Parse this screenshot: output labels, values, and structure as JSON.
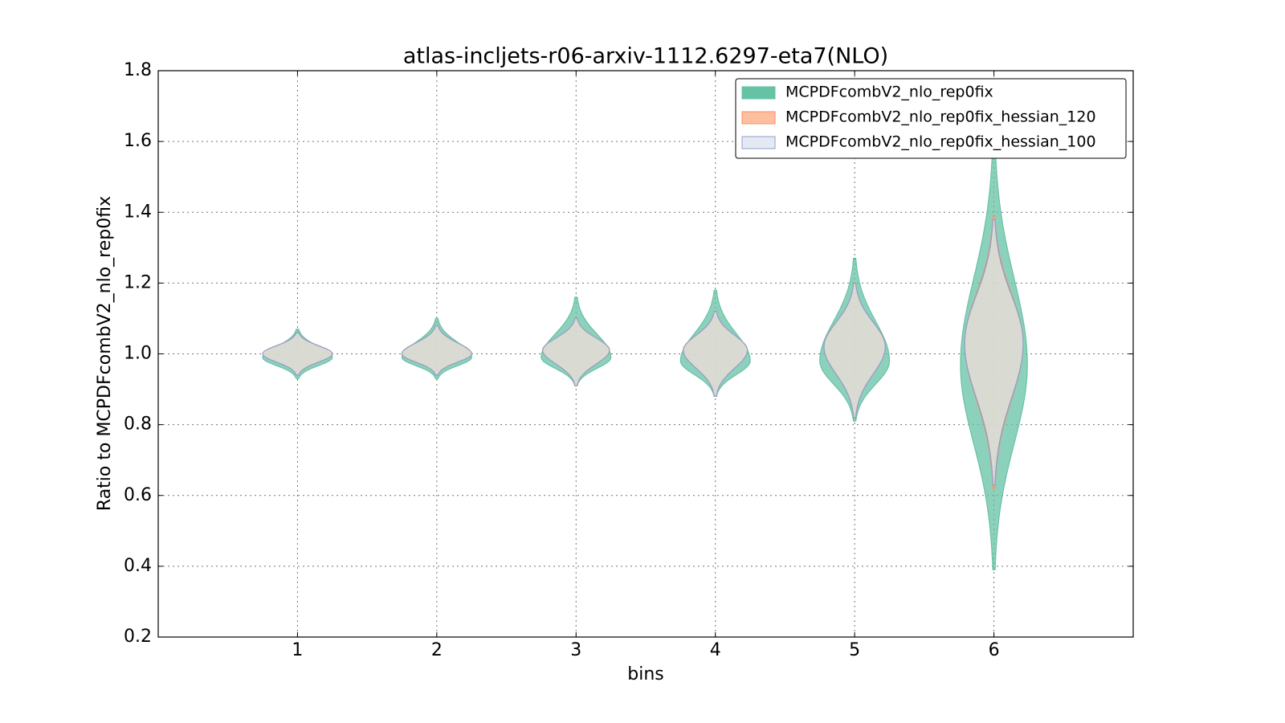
{
  "chart_data": {
    "type": "violin",
    "title": "atlas-incljets-r06-arxiv-1112.6297-eta7(NLO)",
    "xlabel": "bins",
    "ylabel": "Ratio to MCPDFcombV2_nlo_rep0fix",
    "x": [
      1,
      2,
      3,
      4,
      5,
      6
    ],
    "xlim": [
      0,
      7
    ],
    "xticks": [
      1,
      2,
      3,
      4,
      5,
      6
    ],
    "ylim": [
      0.2,
      1.8
    ],
    "yticks": [
      0.2,
      0.4,
      0.6,
      0.8,
      {
        "value": 1,
        "label": "1.0"
      },
      1.2,
      1.4,
      1.6,
      1.8
    ],
    "grid": true,
    "legend": "upper right",
    "series": [
      {
        "name": "MCPDFcombV2_nlo_rep0fix",
        "color": "#66c2a5",
        "edge": "#66c2a5",
        "min": [
          0.93,
          0.93,
          0.91,
          0.88,
          0.81,
          0.39
        ],
        "max": [
          1.07,
          1.1,
          1.16,
          1.18,
          1.27,
          1.6
        ],
        "mode": [
          0.99,
          0.99,
          0.99,
          0.98,
          0.98,
          0.97
        ],
        "half_width": [
          0.25,
          0.25,
          0.25,
          0.25,
          0.25,
          0.24
        ]
      },
      {
        "name": "MCPDFcombV2_nlo_rep0fix_hessian_120",
        "color": "#fdbf9f",
        "edge": "#fc8d62",
        "min": [
          0.94,
          0.94,
          0.91,
          0.88,
          0.82,
          0.62
        ],
        "max": [
          1.06,
          1.08,
          1.1,
          1.12,
          1.2,
          1.39
        ],
        "mode": [
          1.0,
          1.0,
          1.01,
          1.01,
          1.02,
          1.03
        ],
        "half_width": [
          0.25,
          0.25,
          0.24,
          0.23,
          0.22,
          0.21
        ]
      },
      {
        "name": "MCPDFcombV2_nlo_rep0fix_hessian_100",
        "color": "#e5e9f3",
        "edge": "#8da0cb",
        "min": [
          0.94,
          0.94,
          0.91,
          0.88,
          0.82,
          0.63
        ],
        "max": [
          1.06,
          1.08,
          1.1,
          1.12,
          1.2,
          1.38
        ],
        "mode": [
          1.0,
          1.0,
          1.01,
          1.01,
          1.02,
          1.03
        ],
        "half_width": [
          0.25,
          0.25,
          0.24,
          0.23,
          0.22,
          0.21
        ]
      }
    ]
  }
}
